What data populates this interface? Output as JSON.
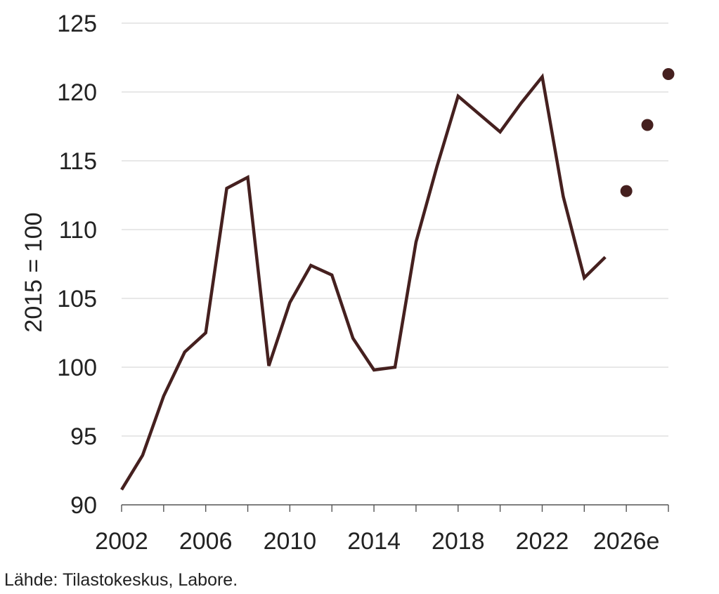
{
  "source_note": "Lähde: Tilastokeskus, Labore.",
  "chart_data": {
    "type": "line",
    "ylabel": "2015 = 100",
    "xlabel": "",
    "ylim": [
      90,
      125
    ],
    "xlim": [
      2002,
      2028
    ],
    "y_ticks": [
      90,
      95,
      100,
      105,
      110,
      115,
      120,
      125
    ],
    "y_tick_labels": [
      "90",
      "95",
      "100",
      "105",
      "110",
      "115",
      "120",
      "125"
    ],
    "x_tick_labels": [
      {
        "x": 2002,
        "label": "2002"
      },
      {
        "x": 2006,
        "label": "2006"
      },
      {
        "x": 2010,
        "label": "2010"
      },
      {
        "x": 2014,
        "label": "2014"
      },
      {
        "x": 2018,
        "label": "2018"
      },
      {
        "x": 2022,
        "label": "2022"
      },
      {
        "x": 2026,
        "label": "2026e"
      }
    ],
    "grid": true,
    "color": "#45201f",
    "series": [
      {
        "kind": "line",
        "x": [
          2002,
          2003,
          2004,
          2005,
          2006,
          2007,
          2008,
          2009,
          2010,
          2011,
          2012,
          2013,
          2014,
          2015,
          2016,
          2017,
          2018,
          2019,
          2020,
          2021,
          2022,
          2023,
          2024,
          2025
        ],
        "values": [
          91.1,
          93.6,
          97.9,
          101.1,
          102.5,
          113.0,
          113.8,
          100.1,
          104.7,
          107.4,
          106.7,
          102.1,
          99.8,
          100.0,
          109.1,
          114.6,
          119.7,
          118.4,
          117.1,
          119.2,
          121.1,
          112.4,
          106.5,
          108.0
        ]
      },
      {
        "kind": "points",
        "x": [
          2026,
          2027,
          2028
        ],
        "values": [
          112.8,
          117.6,
          121.3
        ]
      }
    ]
  }
}
